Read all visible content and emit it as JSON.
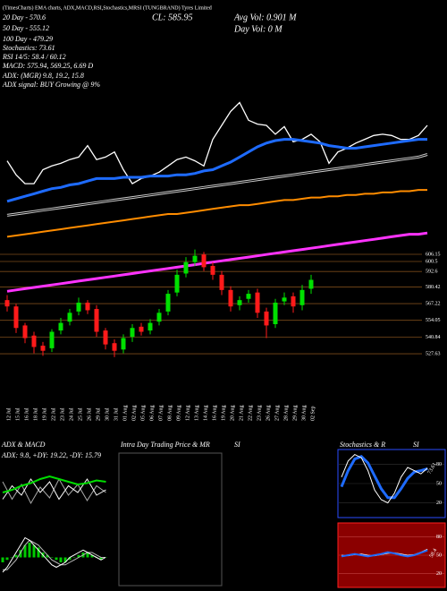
{
  "header": {
    "title": "(TimesCharts) EMA charts, ADX,MACD,RSI,Stochastics,MRSI (TUNGBRAND) Tyres Limited",
    "ema20": "20 Day - 570.6",
    "ema50": "50 Day - 555.12",
    "ema100": "100 Day - 479.29",
    "stoch": "Stochastics: 73.61",
    "rsi": "RSI 14/5: 58.4 / 60.12",
    "macd": "MACD: 575.94, 569.25, 6.69 D",
    "adx": "ADX:          (MGR) 9.8, 19.2, 15.8",
    "adx_signal": "ADX  signal:                   BUY Growing @ 9%",
    "close": "CL: 585.95",
    "avg_vol": "Avg Vol: 0.901 M",
    "day_vol": "Day Vol: 0   M"
  },
  "chart_data": {
    "type": "candlestick",
    "ylim": [
      510,
      807
    ],
    "categories": [
      "12 Jul",
      "15 Jul",
      "16 Jul",
      "18 Jul",
      "19 Jul",
      "22 Jul",
      "23 Jul",
      "24 Jul",
      "25 Jul",
      "26 Jul",
      "29 Jul",
      "30 Jul",
      "31 Jul",
      "01 Aug",
      "02 Aug",
      "05 Aug",
      "06 Aug",
      "07 Aug",
      "08 Aug",
      "09 Aug",
      "12 Aug",
      "13 Aug",
      "14 Aug",
      "16 Aug",
      "19 Aug",
      "20 Aug",
      "21 Aug",
      "22 Aug",
      "23 Aug",
      "26 Aug",
      "27 Aug",
      "28 Aug",
      "29 Aug",
      "30 Aug",
      "02 Sep",
      null,
      null,
      null,
      null,
      null,
      null,
      null,
      null,
      null,
      null,
      null,
      null,
      null
    ],
    "open": [
      570,
      565,
      550,
      542,
      534,
      532,
      546,
      553,
      561,
      568,
      563,
      546,
      536,
      531,
      541,
      549,
      546,
      553,
      561,
      576,
      591,
      600,
      606,
      597,
      590,
      578,
      566,
      571,
      576,
      561,
      551,
      569,
      573,
      566,
      579,
      null,
      null,
      null,
      null,
      null,
      null,
      null,
      null,
      null,
      null,
      null,
      null,
      null
    ],
    "high": [
      574,
      567,
      552,
      545,
      537,
      547,
      556,
      563,
      572,
      570,
      566,
      548,
      539,
      543,
      551,
      552,
      555,
      563,
      578,
      594,
      604,
      610,
      608,
      600,
      593,
      581,
      573,
      578,
      579,
      564,
      571,
      576,
      576,
      582,
      590,
      null,
      null,
      null,
      null,
      null,
      null,
      null,
      null,
      null,
      null,
      null,
      null,
      null
    ],
    "low": [
      561,
      544,
      536,
      528,
      526,
      529,
      543,
      550,
      558,
      559,
      541,
      531,
      525,
      528,
      537,
      542,
      543,
      550,
      558,
      573,
      588,
      597,
      593,
      586,
      574,
      561,
      562,
      568,
      556,
      540,
      548,
      566,
      560,
      562,
      575,
      null,
      null,
      null,
      null,
      null,
      null,
      null,
      null,
      null,
      null,
      null,
      null,
      null
    ],
    "close": [
      565,
      548,
      540,
      533,
      530,
      545,
      552,
      560,
      568,
      562,
      545,
      535,
      530,
      540,
      548,
      545,
      552,
      560,
      575,
      590,
      600,
      605,
      596,
      590,
      578,
      565,
      570,
      575,
      560,
      550,
      568,
      572,
      565,
      578,
      586,
      null,
      null,
      null,
      null,
      null,
      null,
      null,
      null,
      null,
      null,
      null,
      null,
      null
    ],
    "up_color": "#00e000",
    "down_color": "#ff1a1a",
    "lines": [
      {
        "color": "#ffffff",
        "width": 1.3,
        "values": [
          680,
          669,
          662,
          662,
          673,
          676,
          678,
          681,
          683,
          692,
          681,
          683,
          687,
          673,
          662,
          666,
          668,
          671,
          676,
          681,
          683,
          680,
          676,
          697,
          708,
          719,
          726,
          712,
          709,
          708,
          701,
          707,
          695,
          697,
          701,
          695,
          678,
          687,
          690,
          694,
          697,
          700,
          701,
          700,
          697,
          697,
          700,
          708
        ]
      },
      {
        "color": "#1e6bff",
        "width": 3,
        "values": [
          648,
          650,
          652,
          654,
          656,
          658,
          659,
          661,
          662,
          664,
          666,
          666,
          666,
          667,
          667,
          667,
          668,
          668,
          668,
          669,
          669,
          670,
          672,
          673,
          676,
          679,
          683,
          687,
          691,
          694,
          696,
          697,
          697,
          696,
          695,
          694,
          692,
          691,
          690,
          690,
          691,
          692,
          693,
          694,
          695,
          696,
          697,
          697
        ]
      },
      {
        "color": "#cccccc",
        "width": 3,
        "values": [
          637,
          638,
          639,
          640,
          641,
          642,
          643,
          644,
          645,
          646,
          647,
          648,
          649,
          650,
          651,
          652,
          653,
          654,
          655,
          656,
          657,
          658,
          659,
          660,
          661,
          662,
          663,
          664,
          665,
          666,
          667,
          668,
          669,
          670,
          671,
          672,
          673,
          674,
          675,
          676,
          677,
          678,
          679,
          680,
          681,
          682,
          683,
          685
        ]
      },
      {
        "color": "#ff8c00",
        "width": 2,
        "values": [
          620,
          621,
          622,
          623,
          624,
          625,
          626,
          627,
          628,
          629,
          630,
          631,
          632,
          633,
          634,
          635,
          636,
          637,
          638,
          638,
          639,
          640,
          641,
          642,
          643,
          644,
          645,
          645,
          646,
          647,
          648,
          649,
          649,
          650,
          651,
          651,
          652,
          652,
          653,
          653,
          654,
          654,
          655,
          655,
          656,
          656,
          657,
          657
        ]
      },
      {
        "color": "#ff33ff",
        "width": 3,
        "values": [
          577,
          578,
          579,
          580,
          581,
          582,
          583,
          584,
          585,
          586,
          587,
          588,
          589,
          590,
          591,
          592,
          593,
          594,
          595,
          596,
          597,
          598,
          599,
          600,
          601,
          602,
          603,
          604,
          605,
          606,
          607,
          608,
          609,
          610,
          611,
          612,
          613,
          614,
          615,
          616,
          617,
          618,
          619,
          620,
          621,
          622,
          622,
          623
        ]
      }
    ],
    "levels": [
      606.15,
      600.5,
      592.6,
      580.42,
      567.22,
      554.05,
      540.84,
      527.63
    ],
    "level_color": "#7a4a1a"
  },
  "adx_panel": {
    "title": "ADX & MACD",
    "subtitle": "ADX: 9.8, +DY: 19.22, -DY: 15.79",
    "ylim": [
      0,
      40
    ],
    "adx": {
      "color": "#00dd00",
      "values": [
        20,
        22,
        25,
        27,
        30,
        32,
        30,
        28,
        26,
        27,
        29,
        28
      ]
    },
    "plus_di": {
      "color": "#ffffff",
      "values": [
        15,
        25,
        18,
        30,
        20,
        28,
        15,
        25,
        20,
        30,
        18,
        22
      ]
    },
    "minus_di": {
      "color": "#aaaaaa",
      "values": [
        28,
        15,
        26,
        12,
        24,
        16,
        30,
        18,
        26,
        14,
        25,
        20
      ]
    },
    "macd_ylim": [
      -10,
      10
    ],
    "macd": {
      "color": "#ffffff",
      "values": [
        -6,
        -4,
        -1,
        2,
        5,
        8,
        7,
        5,
        3,
        1,
        -1,
        -3,
        -4,
        -3,
        -2,
        0,
        1,
        2,
        3,
        2,
        1,
        0,
        -1,
        0
      ]
    },
    "signal": {
      "color": "#bbbbbb",
      "values": [
        -5,
        -5,
        -3,
        -1,
        2,
        5,
        7,
        6,
        5,
        3,
        1,
        -1,
        -2,
        -3,
        -3,
        -2,
        -1,
        0,
        1,
        2,
        2,
        1,
        0,
        0
      ]
    },
    "histogram": {
      "color": "#00cc00",
      "values": [
        -2,
        -1,
        0,
        1,
        3,
        5,
        6,
        5,
        4,
        2,
        1,
        0,
        -1,
        -2,
        -2,
        -1,
        0,
        1,
        2,
        2,
        1,
        0,
        -1,
        0
      ]
    }
  },
  "intraday_panel": {
    "title": "Intra Day Trading Price & MR",
    "title_suffix": "SI"
  },
  "stoch_panel": {
    "title": "Stochastics & R",
    "title_suffix": "SI",
    "ylim": [
      0,
      100
    ],
    "yticks": [
      20,
      50,
      80
    ],
    "k": {
      "color": "#ffffff",
      "values": [
        60,
        85,
        95,
        90,
        70,
        40,
        25,
        20,
        35,
        60,
        75,
        70,
        65,
        74
      ]
    },
    "d": {
      "color": "#1e6bff",
      "values": [
        45,
        70,
        88,
        92,
        82,
        62,
        42,
        28,
        28,
        42,
        58,
        68,
        70,
        73
      ]
    },
    "label": 73.61
  },
  "rsi_panel": {
    "ylim": [
      0,
      100
    ],
    "yticks": [
      20,
      50,
      80
    ],
    "rsi": {
      "color": "#1e6bff",
      "values": [
        48,
        50,
        52,
        50,
        48,
        50,
        52,
        55,
        53,
        50,
        48,
        50,
        54,
        58
      ]
    },
    "mrsi": {
      "color": "#ffffff",
      "values": [
        50,
        49,
        51,
        52,
        50,
        49,
        51,
        53,
        54,
        52,
        50,
        51,
        55,
        60
      ]
    },
    "label": 58.4
  }
}
